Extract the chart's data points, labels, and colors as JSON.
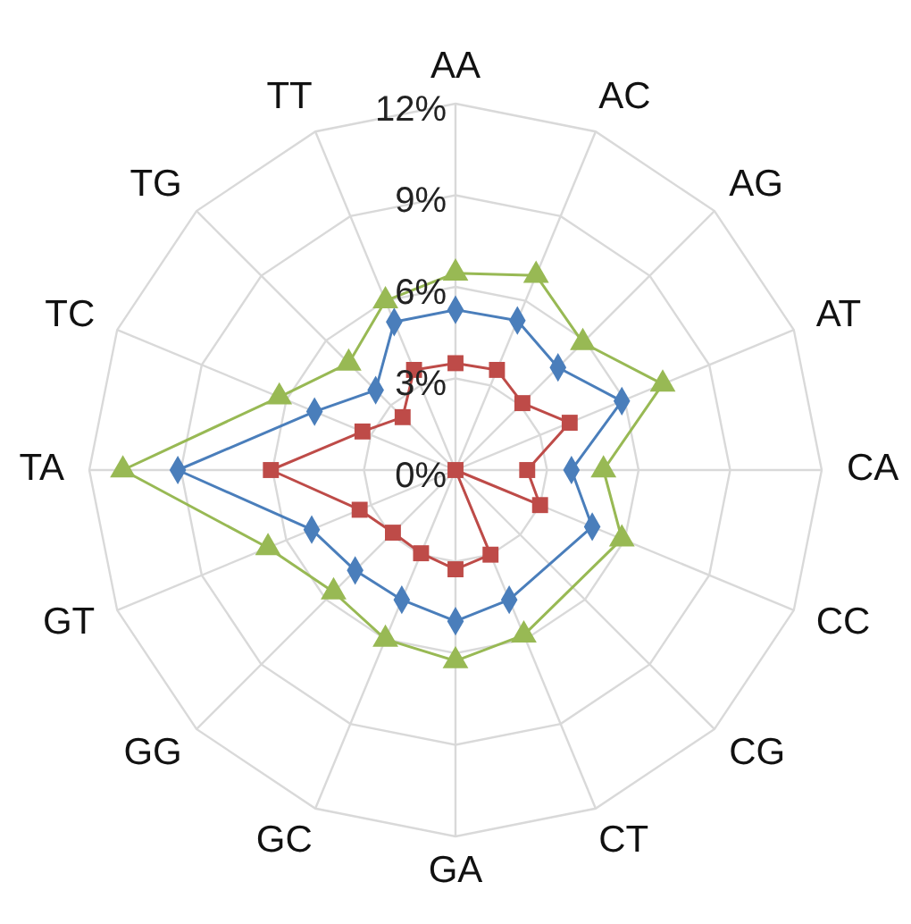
{
  "chart_data": {
    "type": "radar",
    "categories": [
      "AA",
      "AC",
      "AG",
      "AT",
      "CA",
      "CC",
      "CG",
      "CT",
      "GA",
      "GC",
      "GG",
      "GT",
      "TA",
      "TC",
      "TG",
      "TT"
    ],
    "ylim": [
      0,
      12
    ],
    "yticks": [
      {
        "value": 0,
        "label": "0%"
      },
      {
        "value": 3,
        "label": "3%"
      },
      {
        "value": 6,
        "label": "6%"
      },
      {
        "value": 9,
        "label": "9%"
      },
      {
        "value": 12,
        "label": "12%"
      }
    ],
    "grid": true,
    "series": [
      {
        "color": "#4a7ebb",
        "marker": "diamond",
        "values": [
          5.25,
          5.3,
          4.75,
          5.9,
          3.8,
          4.85,
          null,
          4.6,
          4.95,
          4.6,
          4.65,
          5.1,
          9.1,
          5.0,
          3.7,
          5.25
        ]
      },
      {
        "color": "#be4b48",
        "marker": "square",
        "values": [
          3.5,
          3.55,
          3.1,
          4.05,
          2.35,
          3.0,
          0,
          3.0,
          3.25,
          2.95,
          2.9,
          3.4,
          6.05,
          3.3,
          2.45,
          3.55
        ]
      },
      {
        "color": "#98b954",
        "marker": "triangle",
        "values": [
          6.45,
          6.9,
          5.9,
          7.35,
          4.85,
          5.9,
          null,
          5.85,
          6.25,
          6.0,
          5.65,
          6.65,
          10.9,
          6.25,
          4.95,
          6.0
        ]
      }
    ]
  }
}
